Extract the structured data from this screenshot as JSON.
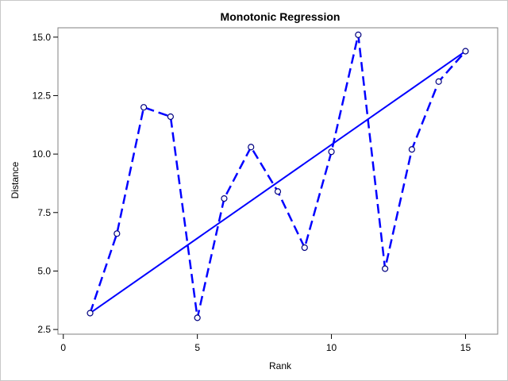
{
  "chart_data": {
    "type": "line",
    "title": "Monotonic Regression",
    "xlabel": "Rank",
    "ylabel": "Distance",
    "xlim": [
      -0.2,
      16.2
    ],
    "ylim": [
      2.3,
      15.4
    ],
    "xticks": [
      0,
      5,
      10,
      15
    ],
    "xtick_labels": [
      "0",
      "5",
      "10",
      "15"
    ],
    "yticks": [
      2.5,
      5.0,
      7.5,
      10.0,
      12.5,
      15.0
    ],
    "ytick_labels": [
      "2.5",
      "5.0",
      "7.5",
      "10.0",
      "12.5",
      "15.0"
    ],
    "grid": false,
    "legend": "none",
    "series": [
      {
        "style": "dashed-line-with-circle-markers",
        "color": "#0000ff",
        "x": [
          1,
          2,
          3,
          4,
          5,
          6,
          7,
          8,
          9,
          10,
          11,
          12,
          13,
          14,
          15
        ],
        "y": [
          3.2,
          6.6,
          12.0,
          11.6,
          3.0,
          8.1,
          10.3,
          8.4,
          6.0,
          10.1,
          15.1,
          5.1,
          10.2,
          13.1,
          14.4
        ]
      },
      {
        "style": "solid-line",
        "color": "#0000ff",
        "x": [
          1,
          15
        ],
        "y": [
          3.2,
          14.4
        ]
      }
    ]
  }
}
